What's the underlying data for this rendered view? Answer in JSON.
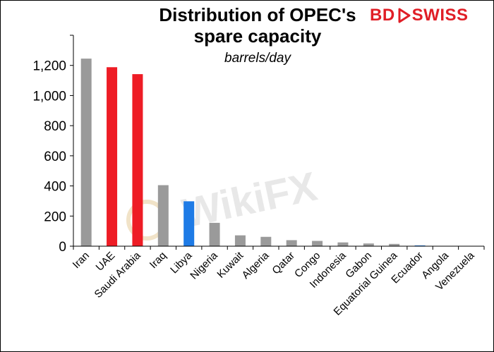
{
  "header": {
    "title_line1": "Distribution of OPEC's",
    "title_line2": "spare capacity",
    "subtitle": "barrels/day"
  },
  "logo": {
    "text_bd": "BD",
    "text_swiss": "SWISS"
  },
  "watermark": "WikiFX",
  "colors": {
    "gray": "#9a9a9a",
    "red": "#ee1c25",
    "blue": "#1e7be6",
    "axis": "#000000"
  },
  "chart_data": {
    "type": "bar",
    "title": "Distribution of OPEC's spare capacity",
    "subtitle": "barrels/day",
    "categories": [
      "Iran",
      "UAE",
      "Saudi Arabia",
      "Iraq",
      "Libya",
      "Nigeria",
      "Kuwait",
      "Algeria",
      "Qatar",
      "Congo",
      "Indonesia",
      "Gabon",
      "Equatorial Guinea",
      "Ecuador",
      "Angola",
      "Venezuela"
    ],
    "values": [
      1245,
      1188,
      1142,
      405,
      298,
      155,
      72,
      62,
      40,
      35,
      25,
      18,
      15,
      5,
      0,
      0
    ],
    "bar_colors": [
      "gray",
      "red",
      "red",
      "gray",
      "blue",
      "gray",
      "gray",
      "gray",
      "gray",
      "gray",
      "gray",
      "gray",
      "gray",
      "blue",
      "gray",
      "gray"
    ],
    "yticks": [
      0,
      200,
      400,
      600,
      800,
      1000,
      1200
    ],
    "ytick_labels": [
      "0",
      "200",
      "400",
      "600",
      "800",
      "1,000",
      "1,200"
    ],
    "ylim": [
      0,
      1400
    ],
    "xlabel": "",
    "ylabel": "",
    "grid": false,
    "legend": "none"
  }
}
